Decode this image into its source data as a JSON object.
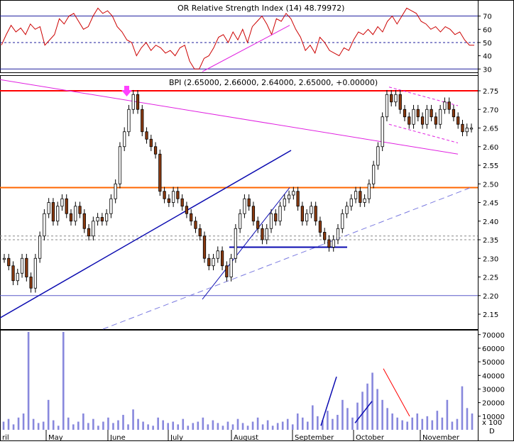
{
  "chart_data": [
    {
      "type": "line",
      "panel": "rsi",
      "title": "OR Relative Strength Index (14) 48.79972)",
      "y_ticks": [
        30,
        40,
        50,
        60,
        70
      ],
      "ylim": [
        28,
        80
      ],
      "reference_lines": [
        30,
        50,
        70
      ],
      "values": [
        48,
        56,
        63,
        58,
        61,
        56,
        64,
        60,
        62,
        48,
        52,
        56,
        68,
        64,
        70,
        72,
        66,
        60,
        62,
        70,
        76,
        72,
        74,
        70,
        62,
        58,
        52,
        50,
        40,
        46,
        50,
        44,
        48,
        46,
        42,
        44,
        40,
        46,
        48,
        36,
        30,
        30,
        38,
        40,
        46,
        54,
        56,
        50,
        58,
        52,
        60,
        50,
        62,
        66,
        70,
        64,
        56,
        68,
        66,
        72,
        68,
        60,
        54,
        44,
        48,
        42,
        54,
        50,
        44,
        42,
        40,
        46,
        44,
        52,
        58,
        56,
        60,
        56,
        62,
        58,
        66,
        70,
        64,
        70,
        76,
        74,
        72,
        66,
        64,
        60,
        62,
        58,
        62,
        60,
        56,
        58,
        52,
        48,
        48
      ]
    },
    {
      "type": "candlestick",
      "panel": "price",
      "title": "BPI (2.65000, 2.66000, 2.64000, 2.65000, +0.00000)",
      "y_ticks": [
        2.15,
        2.2,
        2.25,
        2.3,
        2.35,
        2.4,
        2.45,
        2.5,
        2.55,
        2.6,
        2.65,
        2.7,
        2.75
      ],
      "ylim": [
        2.11,
        2.79
      ],
      "horizontal_levels": [
        2.75,
        2.49,
        2.2,
        2.36,
        2.35,
        2.33
      ],
      "close": [
        2.3,
        2.28,
        2.24,
        2.26,
        2.3,
        2.25,
        2.22,
        2.3,
        2.36,
        2.42,
        2.45,
        2.4,
        2.44,
        2.46,
        2.42,
        2.4,
        2.44,
        2.42,
        2.38,
        2.36,
        2.4,
        2.41,
        2.4,
        2.42,
        2.46,
        2.5,
        2.6,
        2.64,
        2.7,
        2.74,
        2.7,
        2.64,
        2.62,
        2.6,
        2.58,
        2.48,
        2.46,
        2.45,
        2.48,
        2.46,
        2.44,
        2.42,
        2.4,
        2.38,
        2.36,
        2.3,
        2.28,
        2.3,
        2.32,
        2.28,
        2.25,
        2.3,
        2.38,
        2.42,
        2.46,
        2.44,
        2.4,
        2.38,
        2.35,
        2.38,
        2.42,
        2.4,
        2.44,
        2.46,
        2.47,
        2.48,
        2.44,
        2.4,
        2.42,
        2.44,
        2.4,
        2.37,
        2.35,
        2.33,
        2.35,
        2.38,
        2.42,
        2.44,
        2.46,
        2.48,
        2.45,
        2.46,
        2.5,
        2.55,
        2.6,
        2.68,
        2.74,
        2.72,
        2.74,
        2.7,
        2.68,
        2.66,
        2.7,
        2.68,
        2.66,
        2.7,
        2.68,
        2.66,
        2.7,
        2.72,
        2.7,
        2.68,
        2.66,
        2.64,
        2.65,
        2.65
      ],
      "x_labels": [
        "ril",
        "May",
        "June",
        "July",
        "August",
        "September",
        "October",
        "November",
        "D"
      ]
    },
    {
      "type": "bar",
      "panel": "volume",
      "y_ticks": [
        10000,
        20000,
        30000,
        40000,
        50000,
        60000,
        70000
      ],
      "ylim": [
        0,
        73000
      ],
      "extra_tick_label": "x 100",
      "values": [
        6000,
        8000,
        4000,
        9000,
        12000,
        72000,
        8000,
        5000,
        6000,
        22000,
        7000,
        3000,
        72000,
        9000,
        4000,
        6000,
        12000,
        5000,
        8000,
        3000,
        6000,
        9000,
        5000,
        7000,
        11000,
        4000,
        15000,
        8000,
        6000,
        4000,
        3000,
        9000,
        7000,
        5000,
        6000,
        4000,
        8000,
        3000,
        5000,
        6000,
        9000,
        4000,
        7000,
        5000,
        3000,
        6000,
        4000,
        8000,
        5000,
        3000,
        6000,
        9000,
        4000,
        7000,
        3000,
        5000,
        6000,
        8000,
        4000,
        12000,
        9000,
        6000,
        18000,
        10000,
        7000,
        14000,
        8000,
        11000,
        22000,
        16000,
        9000,
        20000,
        28000,
        34000,
        42000,
        30000,
        22000,
        16000,
        12000,
        9000,
        7000,
        6000,
        9000,
        12000,
        8000,
        10000,
        7000,
        14000,
        9000,
        22000,
        6000,
        8000,
        32000,
        16000,
        12000
      ]
    }
  ]
}
